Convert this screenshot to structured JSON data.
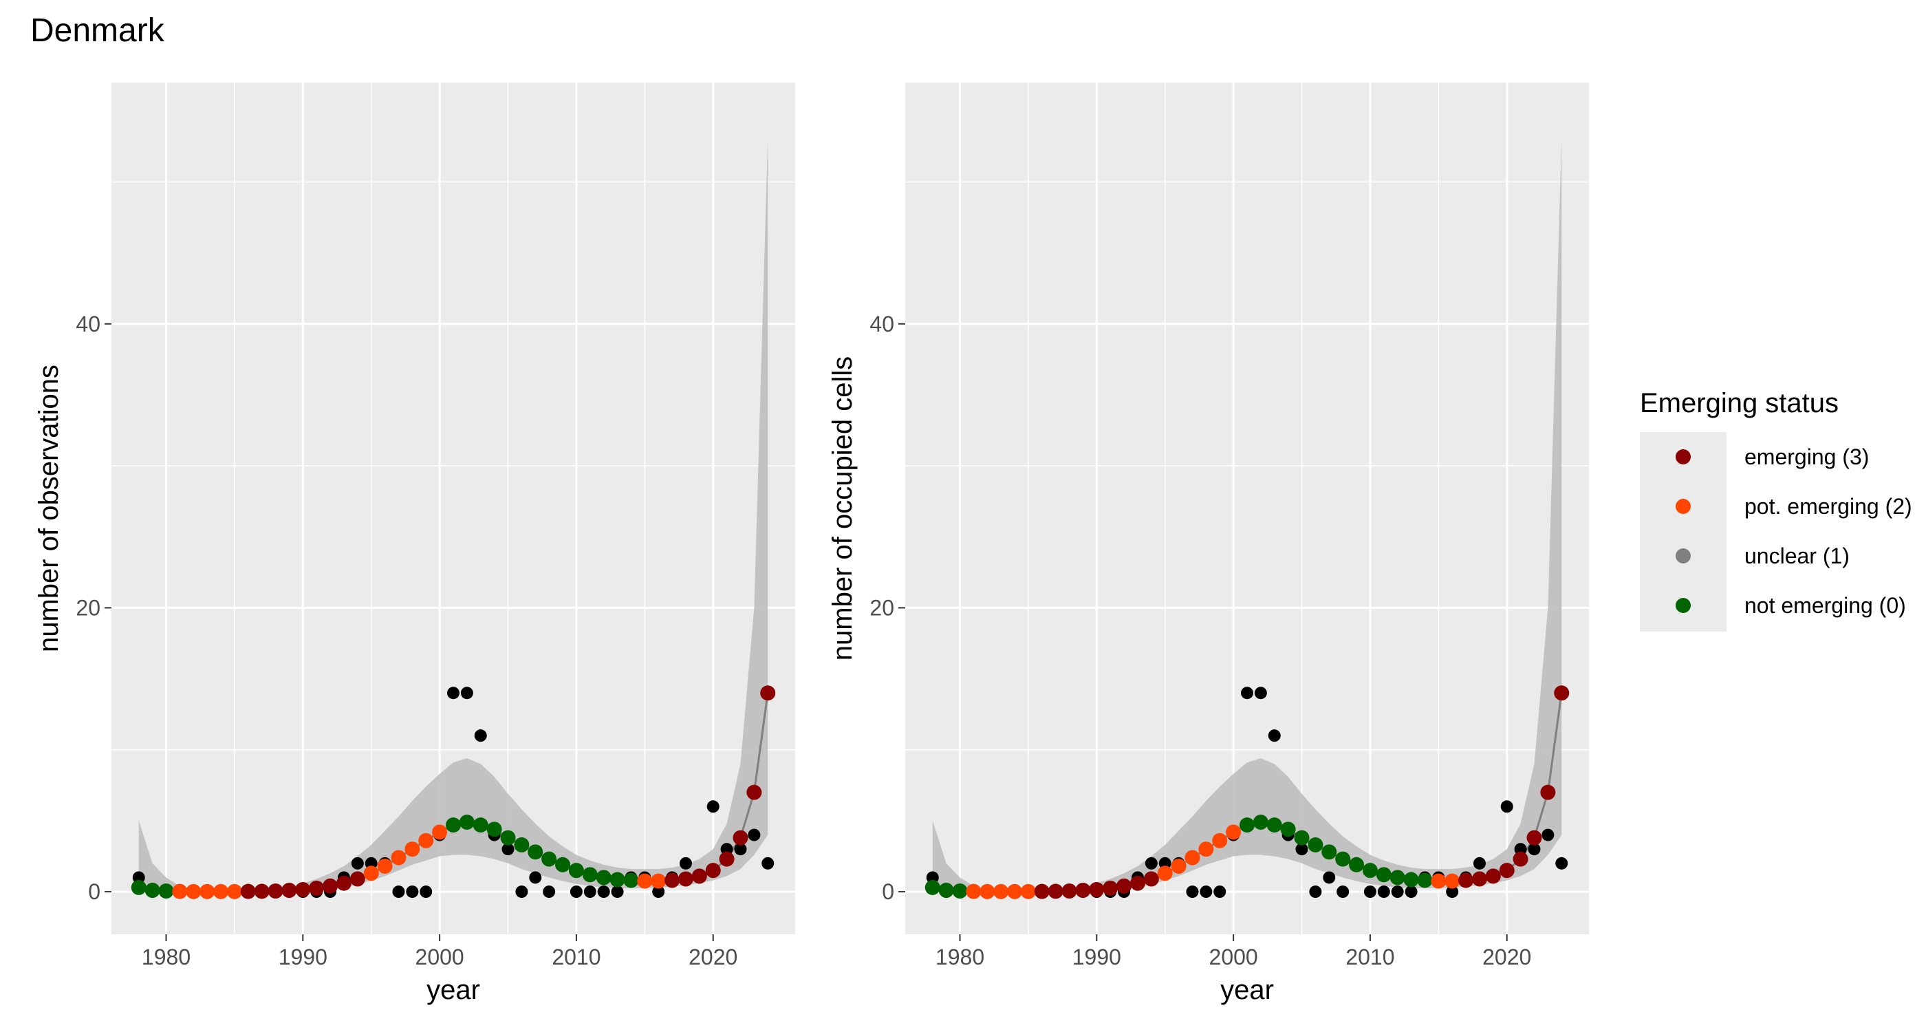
{
  "title": "Denmark",
  "legend": {
    "title": "Emerging status",
    "items": [
      {
        "key": "emerging",
        "label": "emerging (3)",
        "color": "#8b0000"
      },
      {
        "key": "pot",
        "label": "pot. emerging (2)",
        "color": "#ff4500"
      },
      {
        "key": "unclear",
        "label": "unclear (1)",
        "color": "#808080"
      },
      {
        "key": "not",
        "label": "not emerging (0)",
        "color": "#006400"
      }
    ]
  },
  "colors": {
    "panel_background": "#ebebeb",
    "grid": "#ffffff",
    "ribbon": "#bebebe",
    "fit_line": "#808080",
    "observed": "#000000"
  },
  "chart_data": [
    {
      "type": "scatter",
      "xlabel": "year",
      "ylabel": "number of observations",
      "xlim": [
        1976,
        2026
      ],
      "ylim": [
        -3,
        57
      ],
      "xticks": [
        1980,
        1990,
        2000,
        2010,
        2020
      ],
      "yticks": [
        0,
        20,
        40
      ],
      "grid": true,
      "observed": {
        "x": [
          1978,
          1979,
          1980,
          1981,
          1982,
          1983,
          1984,
          1985,
          1986,
          1987,
          1988,
          1989,
          1990,
          1991,
          1992,
          1993,
          1994,
          1995,
          1996,
          1997,
          1998,
          1999,
          2000,
          2001,
          2002,
          2003,
          2004,
          2005,
          2006,
          2007,
          2008,
          2009,
          2010,
          2011,
          2012,
          2013,
          2014,
          2015,
          2016,
          2017,
          2018,
          2019,
          2020,
          2021,
          2022,
          2023,
          2024
        ],
        "y": [
          1,
          0,
          0,
          0,
          0,
          0,
          0,
          0,
          0,
          0,
          0,
          0,
          0,
          0,
          0,
          1,
          2,
          2,
          2,
          0,
          0,
          0,
          4,
          14,
          14,
          11,
          4,
          3,
          0,
          1,
          0,
          2,
          0,
          0,
          0,
          0,
          1,
          1,
          0,
          1,
          2,
          1,
          6,
          3,
          3,
          4,
          2
        ]
      },
      "fit": {
        "x": [
          1978,
          1979,
          1980,
          1981,
          1982,
          1983,
          1984,
          1985,
          1986,
          1987,
          1988,
          1989,
          1990,
          1991,
          1992,
          1993,
          1994,
          1995,
          1996,
          1997,
          1998,
          1999,
          2000,
          2001,
          2002,
          2003,
          2004,
          2005,
          2006,
          2007,
          2008,
          2009,
          2010,
          2011,
          2012,
          2013,
          2014,
          2015,
          2016,
          2017,
          2018,
          2019,
          2020,
          2021,
          2022,
          2023,
          2024
        ],
        "y": [
          0.3,
          0.1,
          0.05,
          0.02,
          0.01,
          0.01,
          0.01,
          0.01,
          0.02,
          0.03,
          0.05,
          0.1,
          0.15,
          0.25,
          0.4,
          0.6,
          0.9,
          1.3,
          1.8,
          2.4,
          3.0,
          3.6,
          4.2,
          4.7,
          4.9,
          4.7,
          4.4,
          3.8,
          3.3,
          2.8,
          2.3,
          1.9,
          1.5,
          1.2,
          1.0,
          0.85,
          0.8,
          0.75,
          0.75,
          0.8,
          0.9,
          1.1,
          1.5,
          2.3,
          3.8,
          7.0,
          14.0
        ],
        "status": [
          "not",
          "not",
          "not",
          "pot",
          "pot",
          "pot",
          "pot",
          "pot",
          "emerging",
          "emerging",
          "emerging",
          "emerging",
          "emerging",
          "emerging",
          "emerging",
          "emerging",
          "emerging",
          "pot",
          "pot",
          "pot",
          "pot",
          "pot",
          "pot",
          "not",
          "not",
          "not",
          "not",
          "not",
          "not",
          "not",
          "not",
          "not",
          "not",
          "not",
          "not",
          "not",
          "not",
          "pot",
          "pot",
          "emerging",
          "emerging",
          "emerging",
          "emerging",
          "emerging",
          "emerging",
          "emerging",
          "emerging"
        ],
        "lower": [
          0.0,
          0.0,
          0.0,
          0.0,
          0.0,
          0.0,
          0.0,
          0.0,
          0.0,
          0.0,
          0.0,
          0.03,
          0.06,
          0.1,
          0.2,
          0.3,
          0.5,
          0.8,
          1.1,
          1.5,
          1.9,
          2.2,
          2.5,
          2.6,
          2.6,
          2.5,
          2.3,
          2.0,
          1.6,
          1.3,
          1.0,
          0.75,
          0.55,
          0.4,
          0.3,
          0.25,
          0.25,
          0.25,
          0.3,
          0.35,
          0.45,
          0.6,
          0.8,
          1.1,
          1.6,
          2.6,
          4.0
        ],
        "upper": [
          5.0,
          2.0,
          1.0,
          0.4,
          0.2,
          0.1,
          0.1,
          0.1,
          0.15,
          0.2,
          0.3,
          0.4,
          0.6,
          0.9,
          1.3,
          1.8,
          2.5,
          3.3,
          4.3,
          5.3,
          6.4,
          7.4,
          8.3,
          9.1,
          9.4,
          9.0,
          8.1,
          6.9,
          5.8,
          4.8,
          3.9,
          3.2,
          2.6,
          2.2,
          1.9,
          1.7,
          1.6,
          1.6,
          1.6,
          1.7,
          1.9,
          2.3,
          3.0,
          4.8,
          9.0,
          20.0,
          53.0
        ]
      }
    },
    {
      "type": "scatter",
      "xlabel": "year",
      "ylabel": "number of occupied cells",
      "xlim": [
        1976,
        2026
      ],
      "ylim": [
        -3,
        57
      ],
      "xticks": [
        1980,
        1990,
        2000,
        2010,
        2020
      ],
      "yticks": [
        0,
        20,
        40
      ],
      "grid": true,
      "observed": {
        "x": [
          1978,
          1979,
          1980,
          1981,
          1982,
          1983,
          1984,
          1985,
          1986,
          1987,
          1988,
          1989,
          1990,
          1991,
          1992,
          1993,
          1994,
          1995,
          1996,
          1997,
          1998,
          1999,
          2000,
          2001,
          2002,
          2003,
          2004,
          2005,
          2006,
          2007,
          2008,
          2009,
          2010,
          2011,
          2012,
          2013,
          2014,
          2015,
          2016,
          2017,
          2018,
          2019,
          2020,
          2021,
          2022,
          2023,
          2024
        ],
        "y": [
          1,
          0,
          0,
          0,
          0,
          0,
          0,
          0,
          0,
          0,
          0,
          0,
          0,
          0,
          0,
          1,
          2,
          2,
          2,
          0,
          0,
          0,
          4,
          14,
          14,
          11,
          4,
          3,
          0,
          1,
          0,
          2,
          0,
          0,
          0,
          0,
          1,
          1,
          0,
          1,
          2,
          1,
          6,
          3,
          3,
          4,
          2
        ]
      },
      "fit": {
        "x": [
          1978,
          1979,
          1980,
          1981,
          1982,
          1983,
          1984,
          1985,
          1986,
          1987,
          1988,
          1989,
          1990,
          1991,
          1992,
          1993,
          1994,
          1995,
          1996,
          1997,
          1998,
          1999,
          2000,
          2001,
          2002,
          2003,
          2004,
          2005,
          2006,
          2007,
          2008,
          2009,
          2010,
          2011,
          2012,
          2013,
          2014,
          2015,
          2016,
          2017,
          2018,
          2019,
          2020,
          2021,
          2022,
          2023,
          2024
        ],
        "y": [
          0.3,
          0.1,
          0.05,
          0.02,
          0.01,
          0.01,
          0.01,
          0.01,
          0.02,
          0.03,
          0.05,
          0.1,
          0.15,
          0.25,
          0.4,
          0.6,
          0.9,
          1.3,
          1.8,
          2.4,
          3.0,
          3.6,
          4.2,
          4.7,
          4.9,
          4.7,
          4.4,
          3.8,
          3.3,
          2.8,
          2.3,
          1.9,
          1.5,
          1.2,
          1.0,
          0.85,
          0.8,
          0.75,
          0.75,
          0.8,
          0.9,
          1.1,
          1.5,
          2.3,
          3.8,
          7.0,
          14.0
        ],
        "status": [
          "not",
          "not",
          "not",
          "pot",
          "pot",
          "pot",
          "pot",
          "pot",
          "emerging",
          "emerging",
          "emerging",
          "emerging",
          "emerging",
          "emerging",
          "emerging",
          "emerging",
          "emerging",
          "pot",
          "pot",
          "pot",
          "pot",
          "pot",
          "pot",
          "not",
          "not",
          "not",
          "not",
          "not",
          "not",
          "not",
          "not",
          "not",
          "not",
          "not",
          "not",
          "not",
          "not",
          "pot",
          "pot",
          "emerging",
          "emerging",
          "emerging",
          "emerging",
          "emerging",
          "emerging",
          "emerging",
          "emerging"
        ],
        "lower": [
          0.0,
          0.0,
          0.0,
          0.0,
          0.0,
          0.0,
          0.0,
          0.0,
          0.0,
          0.0,
          0.0,
          0.03,
          0.06,
          0.1,
          0.2,
          0.3,
          0.5,
          0.8,
          1.1,
          1.5,
          1.9,
          2.2,
          2.5,
          2.6,
          2.6,
          2.5,
          2.3,
          2.0,
          1.6,
          1.3,
          1.0,
          0.75,
          0.55,
          0.4,
          0.3,
          0.25,
          0.25,
          0.25,
          0.3,
          0.35,
          0.45,
          0.6,
          0.8,
          1.1,
          1.6,
          2.6,
          4.0
        ],
        "upper": [
          5.0,
          2.0,
          1.0,
          0.4,
          0.2,
          0.1,
          0.1,
          0.1,
          0.15,
          0.2,
          0.3,
          0.4,
          0.6,
          0.9,
          1.3,
          1.8,
          2.5,
          3.3,
          4.3,
          5.3,
          6.4,
          7.4,
          8.3,
          9.1,
          9.4,
          9.0,
          8.1,
          6.9,
          5.8,
          4.8,
          3.9,
          3.2,
          2.6,
          2.2,
          1.9,
          1.7,
          1.6,
          1.6,
          1.6,
          1.7,
          1.9,
          2.3,
          3.0,
          4.8,
          9.0,
          20.0,
          53.0
        ]
      }
    }
  ]
}
